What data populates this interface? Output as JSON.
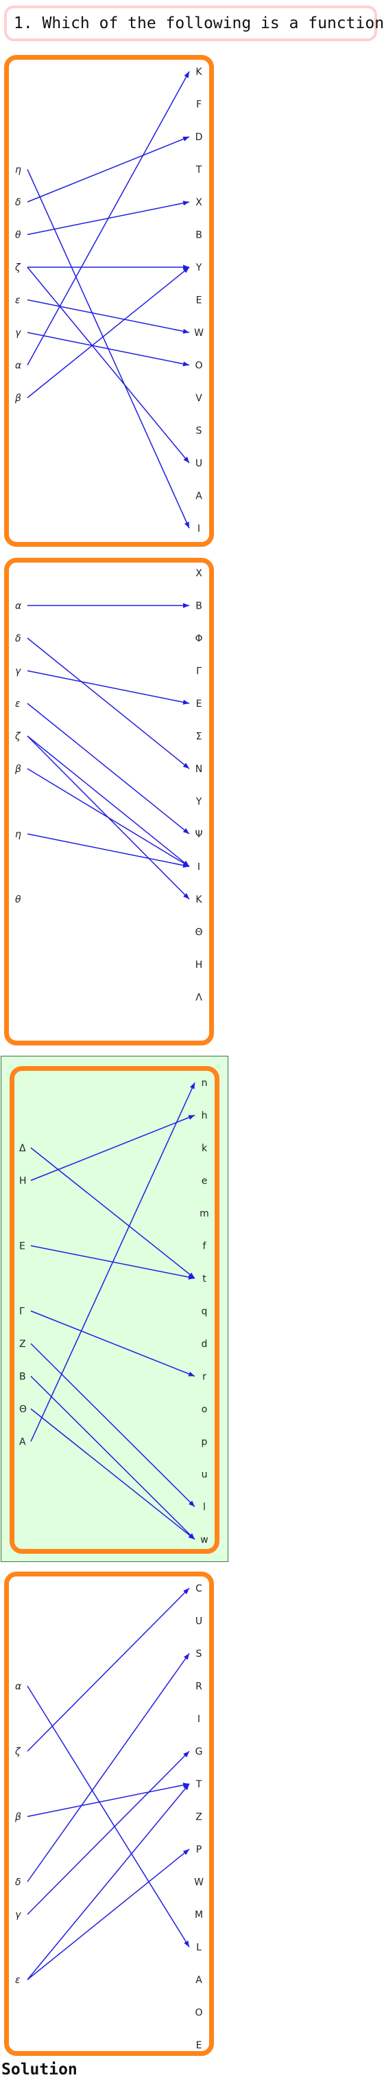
{
  "question": "1. Which of the following is a function:",
  "solution_label": "Solution",
  "colors": {
    "arrow": "#1f1fe0",
    "frame": "#ff8419",
    "highlight": "#dfffdf",
    "question_border": "#ffd0d0"
  },
  "panels": [
    {
      "id": "A",
      "left": [
        "η",
        "δ",
        "θ",
        "ζ",
        "ε",
        "γ",
        "α",
        "β"
      ],
      "right": [
        "K",
        "F",
        "D",
        "T",
        "X",
        "B",
        "Y",
        "E",
        "W",
        "O",
        "V",
        "S",
        "U",
        "A",
        "I"
      ],
      "edges": [
        [
          "η",
          "I"
        ],
        [
          "δ",
          "D"
        ],
        [
          "θ",
          "X"
        ],
        [
          "ζ",
          "Y"
        ],
        [
          "ζ",
          "U"
        ],
        [
          "ε",
          "W"
        ],
        [
          "γ",
          "O"
        ],
        [
          "α",
          "K"
        ],
        [
          "β",
          "Y"
        ]
      ]
    },
    {
      "id": "B",
      "left": [
        "α",
        "δ",
        "γ",
        "ε",
        "ζ",
        "β",
        "η",
        "θ"
      ],
      "right": [
        "X",
        "B",
        "Φ",
        "Γ",
        "E",
        "Σ",
        "N",
        "Y",
        "Ψ",
        "I",
        "K",
        "Θ",
        "H",
        "Λ"
      ],
      "edges": [
        [
          "α",
          "B"
        ],
        [
          "δ",
          "N"
        ],
        [
          "γ",
          "E"
        ],
        [
          "ε",
          "Ψ"
        ],
        [
          "ζ",
          "I"
        ],
        [
          "ζ",
          "K"
        ],
        [
          "β",
          "I"
        ],
        [
          "η",
          "I"
        ]
      ]
    },
    {
      "id": "C",
      "highlighted": true,
      "left": [
        "Δ",
        "H",
        "E",
        "Γ",
        "Z",
        "B",
        "Θ",
        "A"
      ],
      "right": [
        "n",
        "h",
        "k",
        "e",
        "m",
        "f",
        "t",
        "q",
        "d",
        "r",
        "o",
        "p",
        "u",
        "l",
        "w"
      ],
      "edges": [
        [
          "Δ",
          "t"
        ],
        [
          "H",
          "h"
        ],
        [
          "E",
          "t"
        ],
        [
          "Γ",
          "r"
        ],
        [
          "Z",
          "l"
        ],
        [
          "B",
          "w"
        ],
        [
          "Θ",
          "w"
        ],
        [
          "A",
          "n"
        ]
      ]
    },
    {
      "id": "D",
      "left": [
        "α",
        "ζ",
        "β",
        "δ",
        "γ",
        "ε"
      ],
      "right": [
        "C",
        "U",
        "S",
        "R",
        "I",
        "G",
        "T",
        "Z",
        "P",
        "W",
        "M",
        "L",
        "A",
        "O",
        "E"
      ],
      "edges": [
        [
          "α",
          "L"
        ],
        [
          "ζ",
          "C"
        ],
        [
          "β",
          "T"
        ],
        [
          "δ",
          "S"
        ],
        [
          "γ",
          "G"
        ],
        [
          "ε",
          "T"
        ],
        [
          "ε",
          "P"
        ]
      ]
    }
  ]
}
